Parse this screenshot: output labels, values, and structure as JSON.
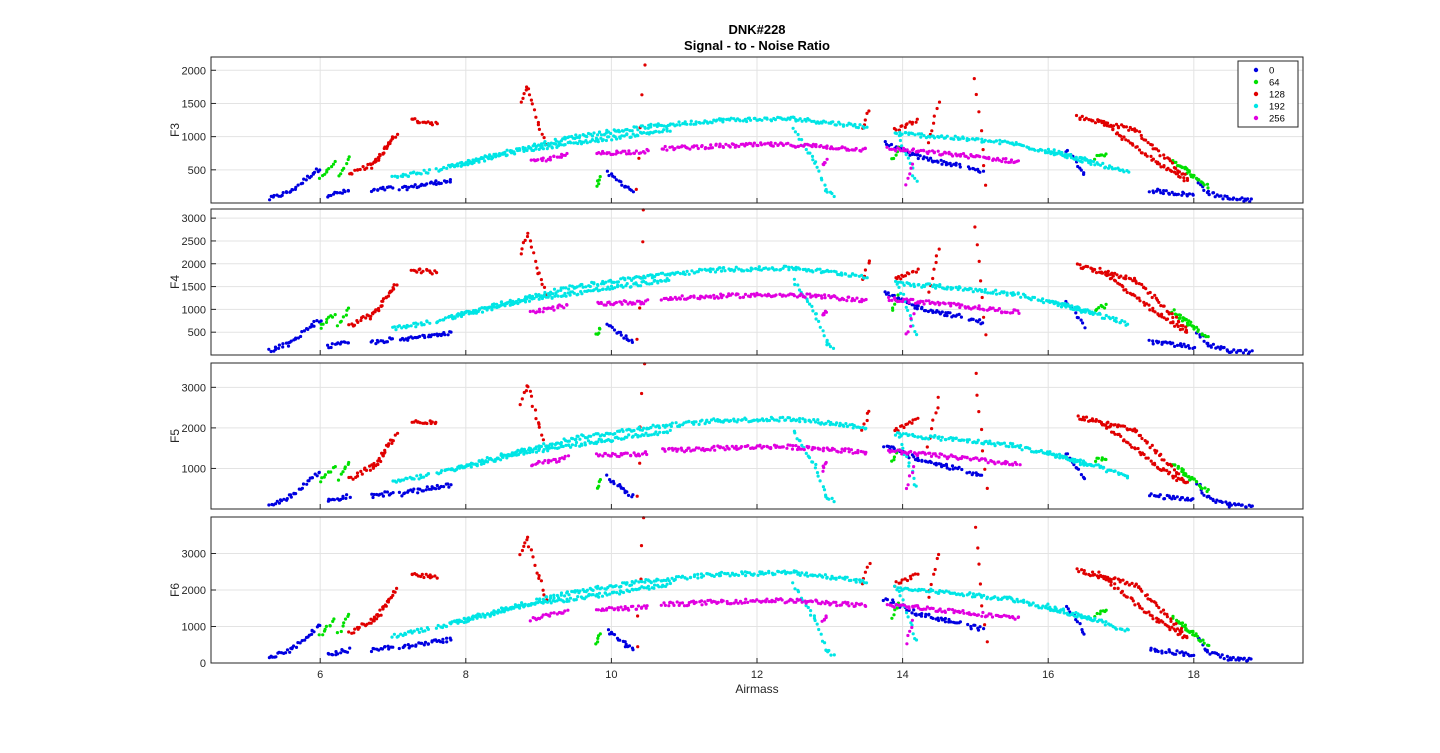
{
  "title_line1": "DNK#228",
  "title_line2": "Signal - to - Noise Ratio",
  "chart_data": {
    "type": "scatter",
    "xlabel": "Airmass",
    "xlim": [
      4.5,
      19.5
    ],
    "xticks": [
      6,
      8,
      10,
      12,
      14,
      16,
      18
    ],
    "grid": true,
    "legend": {
      "placement": "top-right",
      "entries": [
        {
          "label": "0",
          "color": "#0000e0"
        },
        {
          "label": "64",
          "color": "#00e000"
        },
        {
          "label": "128",
          "color": "#e00000"
        },
        {
          "label": "192",
          "color": "#00e5e5"
        },
        {
          "label": "256",
          "color": "#e000e0"
        }
      ]
    },
    "panels": [
      {
        "ylabel": "F3",
        "ylim": [
          0,
          2200
        ],
        "yticks": [
          500,
          1000,
          1500,
          2000
        ],
        "scale": 1.0
      },
      {
        "ylabel": "F4",
        "ylim": [
          0,
          3200
        ],
        "yticks": [
          500,
          1000,
          1500,
          2000,
          2500,
          3000
        ],
        "scale": 1.5
      },
      {
        "ylabel": "F5",
        "ylim": [
          0,
          3600
        ],
        "yticks": [
          1000,
          2000,
          3000
        ],
        "scale": 1.75
      },
      {
        "ylabel": "F6",
        "ylim": [
          0,
          4000
        ],
        "yticks": [
          0,
          1000,
          2000,
          3000
        ],
        "scale": 1.95
      }
    ],
    "series_f3": [
      {
        "name": "0",
        "segments": [
          [
            [
              5.3,
              60
            ],
            [
              5.6,
              180
            ],
            [
              5.9,
              450
            ],
            [
              6.0,
              520
            ]
          ],
          [
            [
              6.1,
              120
            ],
            [
              6.4,
              180
            ]
          ],
          [
            [
              6.7,
              180
            ],
            [
              7.0,
              230
            ]
          ],
          [
            [
              7.1,
              210
            ],
            [
              7.6,
              310
            ],
            [
              7.8,
              330
            ]
          ],
          [
            [
              9.95,
              450
            ],
            [
              10.2,
              250
            ],
            [
              10.3,
              180
            ]
          ],
          [
            [
              13.75,
              900
            ],
            [
              14.2,
              700
            ],
            [
              14.6,
              600
            ],
            [
              14.8,
              560
            ]
          ],
          [
            [
              14.9,
              520
            ],
            [
              15.1,
              480
            ]
          ],
          [
            [
              16.25,
              800
            ],
            [
              16.5,
              420
            ]
          ],
          [
            [
              17.4,
              190
            ],
            [
              18.0,
              120
            ]
          ],
          [
            [
              18.05,
              350
            ],
            [
              18.2,
              150
            ],
            [
              18.5,
              60
            ],
            [
              18.8,
              40
            ]
          ]
        ]
      },
      {
        "name": "64",
        "segments": [
          [
            [
              6.0,
              400
            ],
            [
              6.2,
              600
            ]
          ],
          [
            [
              6.25,
              420
            ],
            [
              6.4,
              680
            ]
          ],
          [
            [
              9.8,
              280
            ],
            [
              9.85,
              400
            ]
          ],
          [
            [
              13.85,
              650
            ],
            [
              13.95,
              850
            ]
          ],
          [
            [
              16.65,
              680
            ],
            [
              16.8,
              720
            ]
          ],
          [
            [
              17.7,
              650
            ],
            [
              18.0,
              420
            ]
          ],
          [
            [
              17.8,
              550
            ],
            [
              18.2,
              250
            ]
          ]
        ]
      },
      {
        "name": "128",
        "segments": [
          [
            [
              6.4,
              420
            ],
            [
              6.8,
              650
            ],
            [
              7.0,
              980
            ]
          ],
          [
            [
              6.7,
              550
            ],
            [
              7.05,
              1050
            ]
          ],
          [
            [
              7.25,
              1250
            ],
            [
              7.6,
              1200
            ]
          ],
          [
            [
              8.75,
              1500
            ],
            [
              8.85,
              1750
            ],
            [
              9.0,
              1200
            ],
            [
              9.1,
              900
            ]
          ],
          [
            [
              10.35,
              200
            ],
            [
              10.45,
              2100
            ]
          ],
          [
            [
              13.45,
              1100
            ],
            [
              13.55,
              1400
            ]
          ],
          [
            [
              13.9,
              1100
            ],
            [
              14.2,
              1250
            ]
          ],
          [
            [
              14.35,
              900
            ],
            [
              14.5,
              1550
            ]
          ],
          [
            [
              15.0,
              1900
            ],
            [
              15.15,
              280
            ]
          ],
          [
            [
              16.4,
              1300
            ],
            [
              17.2,
              1100
            ],
            [
              17.9,
              380
            ]
          ],
          [
            [
              16.7,
              1250
            ],
            [
              17.5,
              600
            ],
            [
              17.9,
              350
            ]
          ]
        ]
      },
      {
        "name": "192",
        "segments": [
          [
            [
              7.0,
              380
            ],
            [
              7.5,
              480
            ]
          ],
          [
            [
              7.6,
              500
            ],
            [
              8.5,
              750
            ],
            [
              9.5,
              1000
            ],
            [
              10.5,
              1150
            ],
            [
              11.5,
              1250
            ],
            [
              12.5,
              1270
            ],
            [
              13.5,
              1150
            ]
          ],
          [
            [
              7.8,
              550
            ],
            [
              8.8,
              800
            ],
            [
              9.8,
              950
            ],
            [
              10.8,
              1100
            ]
          ],
          [
            [
              12.5,
              1100
            ],
            [
              12.8,
              600
            ],
            [
              12.95,
              200
            ],
            [
              13.05,
              100
            ]
          ],
          [
            [
              13.9,
              1050
            ],
            [
              14.5,
              1000
            ],
            [
              15.5,
              900
            ],
            [
              16.5,
              650
            ],
            [
              17.1,
              450
            ]
          ],
          [
            [
              13.95,
              1000
            ],
            [
              14.2,
              300
            ]
          ],
          [
            [
              16.0,
              800
            ],
            [
              16.6,
              600
            ]
          ]
        ]
      },
      {
        "name": "256",
        "segments": [
          [
            [
              8.9,
              620
            ],
            [
              9.4,
              720
            ]
          ],
          [
            [
              9.8,
              750
            ],
            [
              10.5,
              780
            ]
          ],
          [
            [
              10.7,
              820
            ],
            [
              11.5,
              860
            ],
            [
              12.2,
              880
            ],
            [
              12.8,
              860
            ],
            [
              13.5,
              800
            ]
          ],
          [
            [
              12.9,
              560
            ],
            [
              12.95,
              650
            ]
          ],
          [
            [
              13.8,
              820
            ],
            [
              14.2,
              780
            ],
            [
              14.8,
              720
            ],
            [
              15.6,
              620
            ]
          ],
          [
            [
              14.05,
              280
            ],
            [
              14.15,
              600
            ]
          ]
        ]
      }
    ]
  }
}
